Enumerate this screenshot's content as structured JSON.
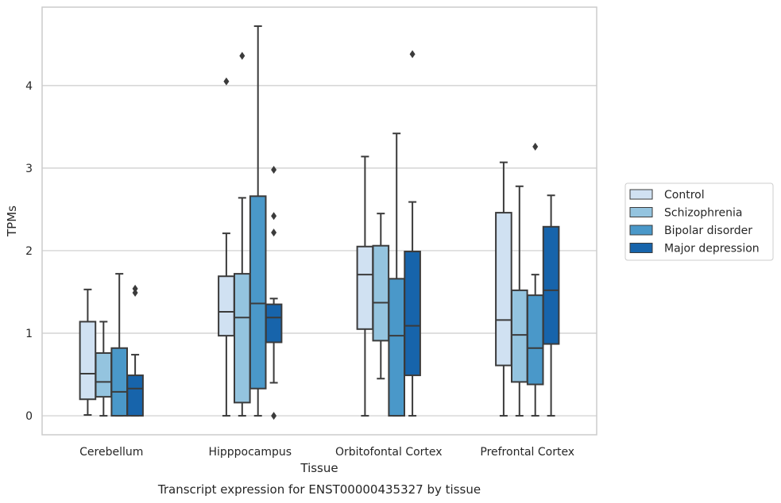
{
  "chart_data": {
    "type": "box",
    "xlabel": "Tissue",
    "ylabel": "TPMs",
    "caption": "Transcript expression for ENST00000435327 by tissue",
    "categories": [
      "Cerebellum",
      "Hipppocampus",
      "Orbitofontal Cortex",
      "Prefrontal Cortex"
    ],
    "ylim": [
      -0.23,
      4.95
    ],
    "yticks": [
      0,
      1,
      2,
      3,
      4
    ],
    "grid": true,
    "legend_position": "right",
    "series": [
      {
        "name": "Control",
        "color": "#d0e1f2",
        "boxes": [
          {
            "whisker_low": 0.01,
            "q1": 0.2,
            "median": 0.51,
            "q3": 1.14,
            "whisker_high": 1.53,
            "outliers": []
          },
          {
            "whisker_low": 0.0,
            "q1": 0.97,
            "median": 1.26,
            "q3": 1.69,
            "whisker_high": 2.21,
            "outliers": [
              4.05
            ]
          },
          {
            "whisker_low": 0.0,
            "q1": 1.05,
            "median": 1.71,
            "q3": 2.05,
            "whisker_high": 3.14,
            "outliers": []
          },
          {
            "whisker_low": 0.0,
            "q1": 0.61,
            "median": 1.16,
            "q3": 2.46,
            "whisker_high": 3.07,
            "outliers": []
          }
        ]
      },
      {
        "name": "Schizophrenia",
        "color": "#94c4df",
        "boxes": [
          {
            "whisker_low": 0.0,
            "q1": 0.23,
            "median": 0.41,
            "q3": 0.76,
            "whisker_high": 1.14,
            "outliers": []
          },
          {
            "whisker_low": 0.0,
            "q1": 0.16,
            "median": 1.19,
            "q3": 1.72,
            "whisker_high": 2.64,
            "outliers": [
              4.36
            ]
          },
          {
            "whisker_low": 0.45,
            "q1": 0.91,
            "median": 1.37,
            "q3": 2.06,
            "whisker_high": 2.45,
            "outliers": []
          },
          {
            "whisker_low": 0.0,
            "q1": 0.41,
            "median": 0.98,
            "q3": 1.52,
            "whisker_high": 2.78,
            "outliers": []
          }
        ]
      },
      {
        "name": "Bipolar disorder",
        "color": "#4a98c9",
        "boxes": [
          {
            "whisker_low": 0.0,
            "q1": 0.0,
            "median": 0.29,
            "q3": 0.82,
            "whisker_high": 1.72,
            "outliers": []
          },
          {
            "whisker_low": 0.0,
            "q1": 0.33,
            "median": 1.36,
            "q3": 2.66,
            "whisker_high": 4.72,
            "outliers": []
          },
          {
            "whisker_low": 0.0,
            "q1": 0.0,
            "median": 0.97,
            "q3": 1.66,
            "whisker_high": 3.42,
            "outliers": []
          },
          {
            "whisker_low": 0.0,
            "q1": 0.38,
            "median": 0.82,
            "q3": 1.46,
            "whisker_high": 1.71,
            "outliers": [
              3.26
            ]
          }
        ]
      },
      {
        "name": "Major depression",
        "color": "#1764ab",
        "boxes": [
          {
            "whisker_low": 0.0,
            "q1": 0.0,
            "median": 0.33,
            "q3": 0.49,
            "whisker_high": 0.74,
            "outliers": [
              1.49,
              1.54
            ]
          },
          {
            "whisker_low": 0.4,
            "q1": 0.89,
            "median": 1.19,
            "q3": 1.35,
            "whisker_high": 1.42,
            "outliers": [
              0.0,
              2.22,
              2.42,
              2.98
            ]
          },
          {
            "whisker_low": 0.0,
            "q1": 0.49,
            "median": 1.09,
            "q3": 1.99,
            "whisker_high": 2.59,
            "outliers": [
              4.38
            ]
          },
          {
            "whisker_low": 0.0,
            "q1": 0.87,
            "median": 1.52,
            "q3": 2.29,
            "whisker_high": 2.67,
            "outliers": []
          }
        ]
      }
    ]
  }
}
